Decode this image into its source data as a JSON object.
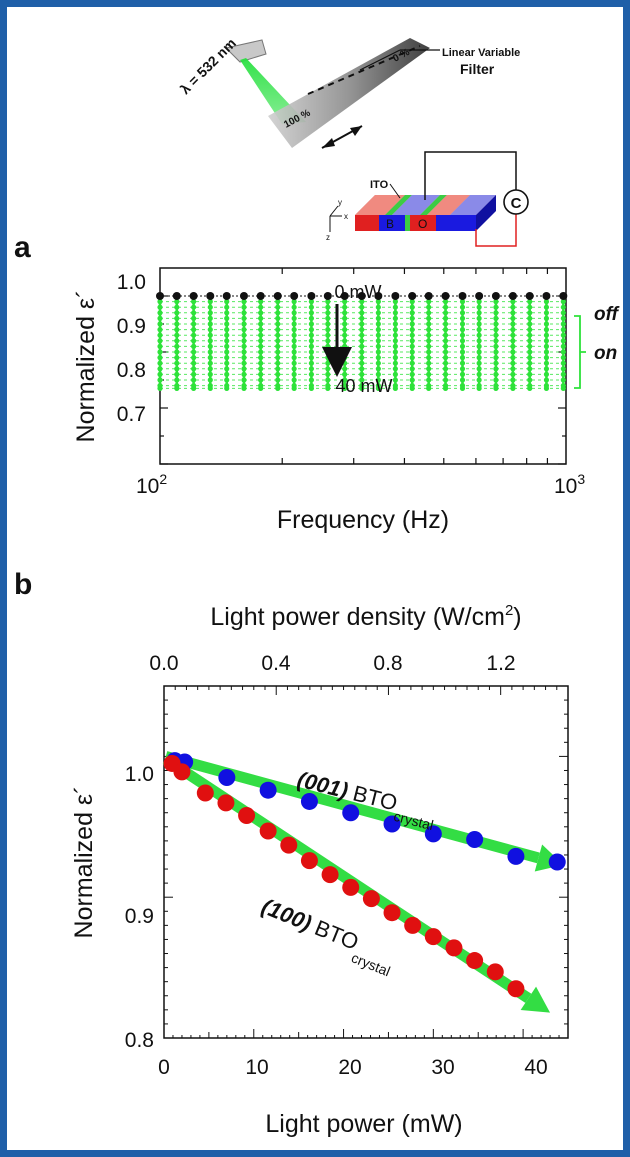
{
  "colors": {
    "frame": "#1f5fa8",
    "on_green": "#2ee23a",
    "off_black": "#111111",
    "arrow_green": "#33dd44",
    "blue_series": "#1010e0",
    "red_series": "#e01010",
    "filter_gray": "#9a9a9a",
    "laser_green": "#28e040"
  },
  "schematic": {
    "wavelength_label": "λ = 532 nm",
    "filter_label_line1": "Linear Variable",
    "filter_label_line2": "Filter",
    "pct_100": "100 %",
    "pct_0": "0 %",
    "ito_label": "ITO",
    "b_label": "B",
    "o_label": "O",
    "meter_label": "C",
    "axes_x": "x",
    "axes_y": "y",
    "axes_z": "z"
  },
  "panel_a": {
    "letter": "a",
    "ylabel": "Normalized ε´",
    "xlabel": "Frequency (Hz)",
    "yticks": [
      "1.0",
      "0.9",
      "0.8",
      "0.7"
    ],
    "xtick_1": "10",
    "xtick_1_exp": "2",
    "xtick_2": "10",
    "xtick_2_exp": "3",
    "top_annotation": "0 mW",
    "bottom_annotation": "40 mW",
    "off_label": "off",
    "on_label": "on"
  },
  "panel_b": {
    "letter": "b",
    "ylabel": "Normalized ε´",
    "xlabel": "Light power (mW)",
    "top_xlabel_prefix": "Light power density (W/cm",
    "top_xlabel_exp": "2",
    "top_xlabel_suffix": ")",
    "yticks": [
      "1.0",
      "0.9",
      "0.8"
    ],
    "xticks": [
      "0",
      "10",
      "20",
      "30",
      "40"
    ],
    "top_xticks": [
      "0.0",
      "0.4",
      "0.8",
      "1.2"
    ],
    "label_001_orient": "(001)",
    "label_001_material": "BTO",
    "label_001_sub": "crystal",
    "label_100_orient": "(100)",
    "label_100_material": "BTO",
    "label_100_sub": "crystal"
  },
  "chart_data": [
    {
      "type": "scatter",
      "panel": "a",
      "xlabel": "Frequency (Hz)",
      "ylabel": "Normalized ε´",
      "x_scale": "log",
      "xlim": [
        100,
        1000
      ],
      "ylim": [
        0.7,
        1.05
      ],
      "x": [
        100,
        110,
        121,
        133,
        146,
        161,
        177,
        195,
        214,
        236,
        259,
        285,
        314,
        345,
        380,
        418,
        459,
        505,
        556,
        611,
        672,
        740,
        814,
        895,
        985
      ],
      "series": [
        {
          "name": "off",
          "constant_value": 1.0
        },
        {
          "name": "on",
          "levels": [
            0.99,
            0.98,
            0.97,
            0.96,
            0.95,
            0.94,
            0.93,
            0.92,
            0.91,
            0.9,
            0.89,
            0.88,
            0.87,
            0.86,
            0.85,
            0.84,
            0.835
          ]
        }
      ],
      "annotations": [
        "0 mW",
        "40 mW",
        "off",
        "on"
      ]
    },
    {
      "type": "scatter",
      "panel": "b",
      "xlabel": "Light power (mW)",
      "ylabel": "Normalized ε´",
      "top_xlabel": "Light power density (W/cm2)",
      "xlim": [
        0,
        45
      ],
      "ylim": [
        0.8,
        1.05
      ],
      "top_xlim": [
        0,
        1.44
      ],
      "series": [
        {
          "name": "(001) BTO crystal",
          "x": [
            1.2,
            2.3,
            7.0,
            11.6,
            16.2,
            20.8,
            25.4,
            30.0,
            34.6,
            39.2,
            43.8
          ],
          "values": [
            0.997,
            0.996,
            0.985,
            0.976,
            0.968,
            0.96,
            0.952,
            0.945,
            0.941,
            0.929,
            0.925
          ]
        },
        {
          "name": "(100) BTO crystal",
          "x": [
            0.9,
            2.0,
            4.6,
            6.9,
            9.2,
            11.6,
            13.9,
            16.2,
            18.5,
            20.8,
            23.1,
            25.4,
            27.7,
            30.0,
            32.3,
            34.6,
            36.9,
            39.2
          ],
          "values": [
            0.995,
            0.989,
            0.974,
            0.967,
            0.958,
            0.947,
            0.937,
            0.926,
            0.916,
            0.907,
            0.899,
            0.889,
            0.88,
            0.872,
            0.864,
            0.855,
            0.847,
            0.835
          ]
        }
      ]
    }
  ]
}
